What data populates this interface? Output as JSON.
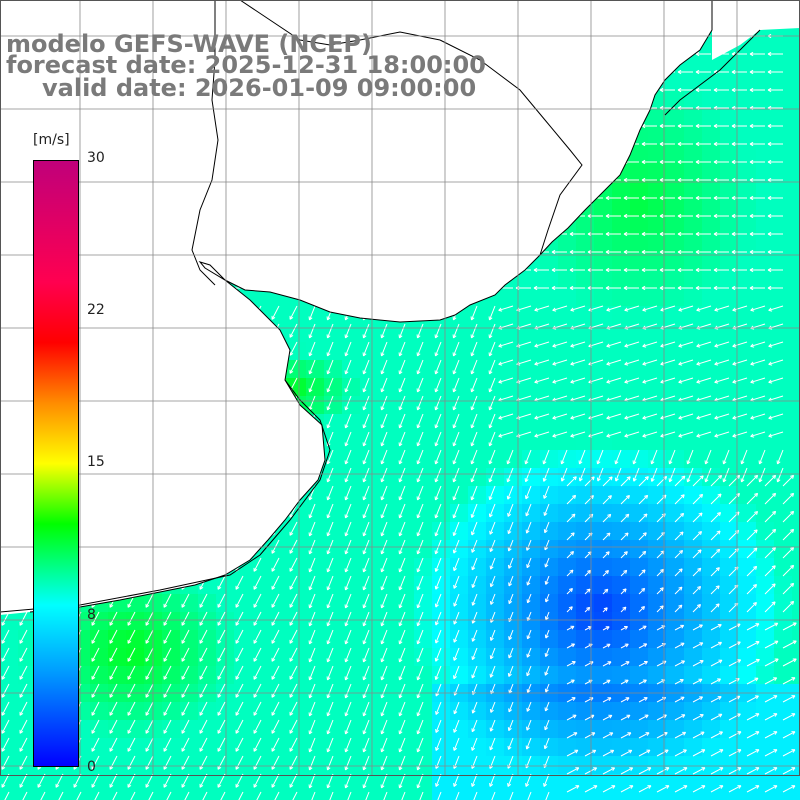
{
  "title": {
    "line1": "modelo GEFS-WAVE (NCEP)",
    "line2": "forecast date: 2025-12-31 18:00:00",
    "line3": "valid date: 2026-01-09 09:00:00"
  },
  "colorbar": {
    "unit": "[m/s]",
    "ticks": [
      "30",
      "22",
      "15",
      "8",
      "0"
    ],
    "min": 0,
    "max": 30,
    "stops": [
      {
        "v": 0,
        "color": "#0000ff"
      },
      {
        "v": 5,
        "color": "#00a0ff"
      },
      {
        "v": 8,
        "color": "#00ffff"
      },
      {
        "v": 12,
        "color": "#00ff00"
      },
      {
        "v": 15,
        "color": "#ffff00"
      },
      {
        "v": 18,
        "color": "#ff8c00"
      },
      {
        "v": 21,
        "color": "#ff0000"
      },
      {
        "v": 24,
        "color": "#ff0050"
      },
      {
        "v": 30,
        "color": "#c0007a"
      }
    ]
  },
  "map": {
    "land_color": "#ffffff",
    "grid_color": "#888888",
    "coast_color": "#000000",
    "arrow_color": "#ffffff"
  }
}
